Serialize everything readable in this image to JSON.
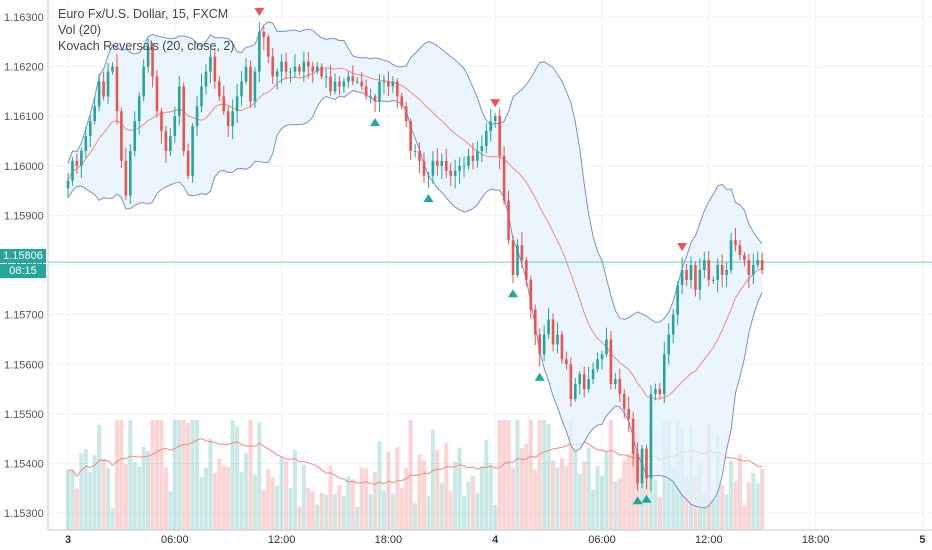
{
  "legend": {
    "symbol": "Euro Fx/U.S. Dollar, 15, FXCM",
    "volume": "Vol (20)",
    "indicator": "Kovach Reversals (20, close, 2)"
  },
  "price_tag": {
    "price": "1.15806",
    "countdown": "08:15",
    "color": "#26a69a"
  },
  "colors": {
    "up": "#26a69a",
    "down": "#ef5350",
    "band": "#7b8fd6",
    "band_fill": "#e3f2fd",
    "ma": "#f28b82"
  },
  "chart_data": {
    "type": "candlestick",
    "title": "Euro Fx/U.S. Dollar, 15, FXCM",
    "timeframe": "15",
    "x_tick_labels": [
      "3",
      "06:00",
      "12:00",
      "18:00",
      "4",
      "06:00",
      "12:00",
      "18:00",
      "5"
    ],
    "y_tick_labels": [
      "1.16300",
      "1.16200",
      "1.16100",
      "1.16000",
      "1.15900",
      "1.15800",
      "1.15700",
      "1.15600",
      "1.15500",
      "1.15400",
      "1.15300"
    ],
    "y_range": [
      1.1525,
      1.1632
    ],
    "bars_per_tick": 24,
    "last_price": 1.15806,
    "close": [
      1.1597,
      1.1601,
      1.16,
      1.1603,
      1.1606,
      1.1609,
      1.1612,
      1.1617,
      1.1614,
      1.1619,
      1.162,
      1.1611,
      1.1601,
      1.1594,
      1.1603,
      1.1609,
      1.1614,
      1.162,
      1.1624,
      1.1618,
      1.1611,
      1.1607,
      1.1603,
      1.1606,
      1.161,
      1.1616,
      1.1603,
      1.1598,
      1.1608,
      1.1612,
      1.1616,
      1.1619,
      1.1622,
      1.1617,
      1.1614,
      1.1611,
      1.1608,
      1.1611,
      1.1614,
      1.1617,
      1.162,
      1.1613,
      1.1619,
      1.1627,
      1.1626,
      1.1622,
      1.1618,
      1.1619,
      1.1621,
      1.1619,
      1.1619,
      1.162,
      1.1619,
      1.1621,
      1.162,
      1.1619,
      1.162,
      1.1618,
      1.1618,
      1.1615,
      1.1617,
      1.1616,
      1.1617,
      1.1618,
      1.1617,
      1.1617,
      1.1616,
      1.1614,
      1.1614,
      1.1613,
      1.1617,
      1.1617,
      1.1616,
      1.1617,
      1.1614,
      1.1612,
      1.1609,
      1.1603,
      1.1603,
      1.1601,
      1.1598,
      1.1598,
      1.1601,
      1.16,
      1.1601,
      1.1599,
      1.1598,
      1.1599,
      1.16,
      1.16,
      1.1602,
      1.1601,
      1.1603,
      1.1604,
      1.1607,
      1.1609,
      1.161,
      1.1602,
      1.1593,
      1.1585,
      1.1578,
      1.1584,
      1.1581,
      1.1577,
      1.1571,
      1.1566,
      1.1562,
      1.1566,
      1.1569,
      1.1564,
      1.1566,
      1.1561,
      1.156,
      1.1553,
      1.1556,
      1.1558,
      1.1555,
      1.1557,
      1.1559,
      1.1561,
      1.1562,
      1.1565,
      1.1556,
      1.1557,
      1.1554,
      1.1551,
      1.1549,
      1.1542,
      1.1536,
      1.1543,
      1.1537,
      1.1554,
      1.1555,
      1.1554,
      1.1562,
      1.1566,
      1.157,
      1.1576,
      1.1579,
      1.1577,
      1.158,
      1.1575,
      1.1579,
      1.1581,
      1.1577,
      1.1577,
      1.158,
      1.1578,
      1.1579,
      1.1585,
      1.1584,
      1.1582,
      1.1581,
      1.1578,
      1.158,
      1.1581,
      1.1579
    ],
    "volume_ma_label": "Vol (20)",
    "bollinger": "Kovach Reversals (20, close, 2)"
  }
}
